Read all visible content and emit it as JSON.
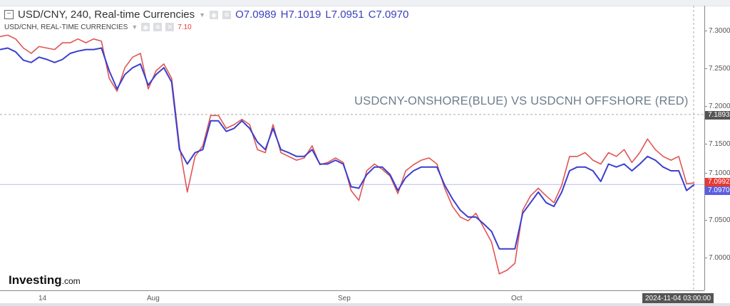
{
  "header": {
    "symbol": "USD/CNY, 240, Real-time Currencies",
    "o": "O7.0989",
    "h": "H7.1019",
    "l": "L7.0951",
    "c": "C7.0970",
    "compare_symbol": "USD/CNH, REAL-TIME CURRENCIES",
    "compare_value": "7.10"
  },
  "annotation": "USDCNY-ONSHORE(BLUE) VS USDCNH OFFSHORE (RED)",
  "logo": {
    "main": "Investing",
    "suffix": ".com"
  },
  "crosshair_time": "2024-11-04 03:00:00",
  "price_tags": {
    "crosshair": "7.1893",
    "red": "7.0992",
    "blue": "7.0970"
  },
  "colors": {
    "blue": "#3b3fcf",
    "red": "#e05555",
    "crosshair_tag": "#555555",
    "red_tag": "#e53935",
    "blue_tag": "#5a5fe0"
  },
  "chart_data": {
    "type": "line",
    "x_range": [
      "2024-07-08",
      "2024-11-04"
    ],
    "x_tick_labels": [
      "14",
      "Aug",
      "Sep",
      "Oct"
    ],
    "y_tick_labels": [
      "7.3000",
      "7.2500",
      "7.2000",
      "7.1500",
      "7.1000",
      "7.0500",
      "7.0000"
    ],
    "ylim": [
      6.965,
      7.33
    ],
    "grid": false,
    "series": [
      {
        "color": "#3b3fcf",
        "values": [
          7.275,
          7.277,
          7.272,
          7.261,
          7.258,
          7.265,
          7.262,
          7.258,
          7.262,
          7.27,
          7.273,
          7.275,
          7.275,
          7.277,
          7.247,
          7.223,
          7.242,
          7.251,
          7.256,
          7.228,
          7.242,
          7.251,
          7.232,
          7.143,
          7.124,
          7.139,
          7.143,
          7.181,
          7.181,
          7.167,
          7.171,
          7.181,
          7.171,
          7.153,
          7.143,
          7.171,
          7.143,
          7.139,
          7.134,
          7.134,
          7.143,
          7.124,
          7.124,
          7.129,
          7.124,
          7.094,
          7.092,
          7.11,
          7.12,
          7.12,
          7.11,
          7.089,
          7.106,
          7.115,
          7.12,
          7.12,
          7.12,
          7.096,
          7.078,
          7.063,
          7.054,
          7.054,
          7.045,
          7.035,
          7.012,
          7.012,
          7.012,
          7.059,
          7.073,
          7.087,
          7.073,
          7.068,
          7.087,
          7.115,
          7.12,
          7.12,
          7.115,
          7.101,
          7.124,
          7.12,
          7.124,
          7.115,
          7.124,
          7.134,
          7.129,
          7.12,
          7.115,
          7.115,
          7.089,
          7.097
        ]
      },
      {
        "color": "#e05555",
        "values": [
          7.292,
          7.294,
          7.289,
          7.277,
          7.27,
          7.279,
          7.277,
          7.275,
          7.284,
          7.284,
          7.289,
          7.284,
          7.289,
          7.286,
          7.237,
          7.22,
          7.251,
          7.265,
          7.27,
          7.223,
          7.247,
          7.256,
          7.237,
          7.148,
          7.087,
          7.134,
          7.148,
          7.188,
          7.188,
          7.171,
          7.176,
          7.183,
          7.176,
          7.143,
          7.139,
          7.176,
          7.139,
          7.134,
          7.129,
          7.132,
          7.148,
          7.123,
          7.126,
          7.132,
          7.126,
          7.089,
          7.076,
          7.115,
          7.124,
          7.117,
          7.108,
          7.085,
          7.115,
          7.123,
          7.129,
          7.132,
          7.124,
          7.092,
          7.068,
          7.054,
          7.049,
          7.059,
          7.04,
          7.021,
          6.979,
          6.984,
          6.993,
          7.063,
          7.082,
          7.092,
          7.082,
          7.073,
          7.096,
          7.134,
          7.134,
          7.139,
          7.129,
          7.124,
          7.139,
          7.134,
          7.143,
          7.126,
          7.139,
          7.157,
          7.143,
          7.134,
          7.129,
          7.134,
          7.098,
          7.099
        ]
      }
    ],
    "reference_lines": [
      7.1893,
      7.097
    ]
  }
}
